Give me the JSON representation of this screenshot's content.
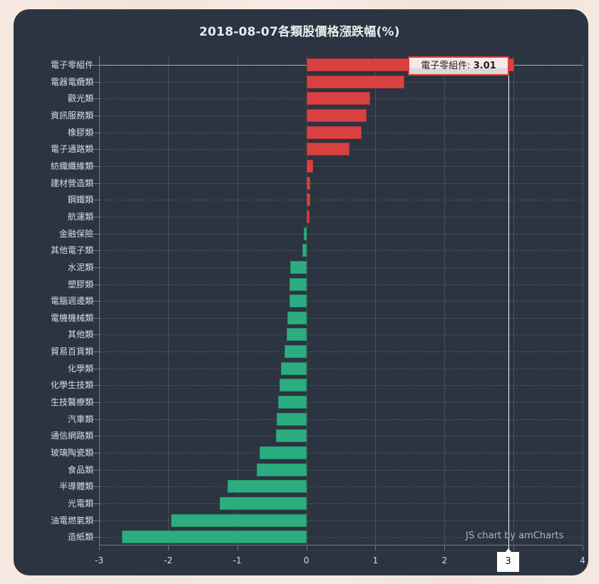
{
  "page": {
    "title": "2018-08-07各類股價格漲跌幅(%)",
    "credit": "JS chart by amCharts",
    "colors": {
      "background_panel": "#2b3440",
      "positive": "#d94141",
      "negative": "#2bad80",
      "tooltip_border": "#e43c3c"
    }
  },
  "tooltip": {
    "category": "電子零組件",
    "separator": ": ",
    "value": "3.01"
  },
  "cursor": {
    "x_label": "3"
  },
  "chart_data": {
    "type": "bar",
    "orientation": "horizontal",
    "title": "2018-08-07各類股價格漲跌幅(%)",
    "xlabel": "",
    "ylabel": "",
    "xlim": [
      -3,
      4
    ],
    "x_ticks": [
      "-3",
      "-2",
      "-1",
      "0",
      "1",
      "2",
      "3",
      "4"
    ],
    "grid": true,
    "legend": null,
    "categories": [
      "電子零組件",
      "電器電纜類",
      "觀光類",
      "資訊服務類",
      "橡膠類",
      "電子通路類",
      "紡織纖維類",
      "建材營造類",
      "鋼鐵類",
      "航運類",
      "金融保險",
      "其他電子類",
      "水泥類",
      "塑膠類",
      "電腦週邊類",
      "電機機械類",
      "其他類",
      "貿易百貨類",
      "化學類",
      "化學生技類",
      "生技醫療類",
      "汽車類",
      "通信網路類",
      "玻璃陶瓷類",
      "食品類",
      "半導體類",
      "光電類",
      "油電燃氣類",
      "造紙類"
    ],
    "values": [
      3.01,
      1.42,
      0.92,
      0.87,
      0.8,
      0.62,
      0.1,
      0.06,
      0.06,
      0.05,
      -0.04,
      -0.06,
      -0.23,
      -0.24,
      -0.24,
      -0.27,
      -0.28,
      -0.32,
      -0.37,
      -0.39,
      -0.41,
      -0.43,
      -0.44,
      -0.68,
      -0.72,
      -1.14,
      -1.26,
      -1.96,
      -2.67
    ],
    "annotations": [
      {
        "type": "tooltip",
        "category": "電子零組件",
        "value": 3.01
      }
    ]
  }
}
